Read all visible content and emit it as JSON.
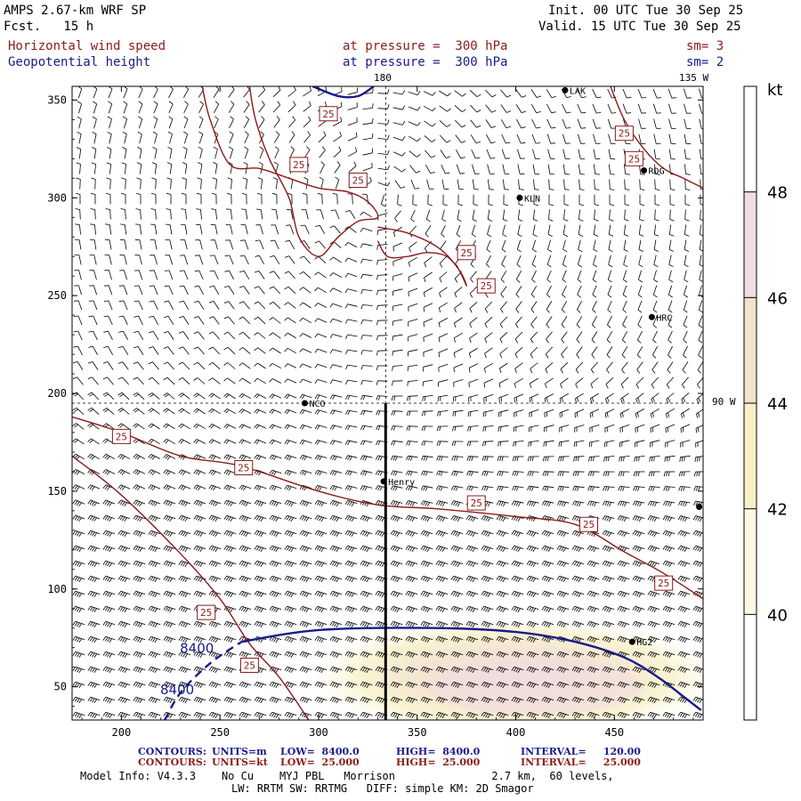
{
  "header": {
    "model": "AMPS 2.67-km WRF SP",
    "forecast": "Fcst.   15 h",
    "init": "Init. 00 UTC Tue 30 Sep 25",
    "valid": "Valid. 15 UTC Tue 30 Sep 25",
    "field1": "Horizontal wind speed",
    "field2": "Geopotential height",
    "pressure1": "at pressure =  300 hPa",
    "pressure2": "at pressure =  300 hPa",
    "smooth1": "sm= 3",
    "smooth2": "sm= 2"
  },
  "map_labels": {
    "lon_180": "180",
    "lon_135w": "135 W",
    "lon_90w": "90 W"
  },
  "stations": [
    {
      "name": "KLN",
      "x": 402,
      "y": 300
    },
    {
      "name": "RDG",
      "x": 465,
      "y": 314
    },
    {
      "name": "HRC",
      "x": 469,
      "y": 239
    },
    {
      "name": "NCO",
      "x": 293,
      "y": 195
    },
    {
      "name": "Henry",
      "x": 333,
      "y": 155
    },
    {
      "name": "HG2",
      "x": 459,
      "y": 73
    },
    {
      "name": "LAK",
      "x": 425,
      "y": 355
    },
    {
      "name": "",
      "x": 493,
      "y": 142
    }
  ],
  "footer": {
    "line1_label": "CONTOURS:",
    "line1_units": "UNITS=m",
    "line1_low": "LOW=  8400.0",
    "line1_high": "HIGH=  8400.0",
    "line1_interval": "INTERVAL=     120.00",
    "line2_label": "CONTOURS:",
    "line2_units": "UNITS=kt",
    "line2_low": "LOW=  25.000",
    "line2_high": "HIGH=  25.000",
    "line2_interval": "INTERVAL=     25.000",
    "model_info": "Model Info: V4.3.3    No Cu    MYJ PBL   Morrison               2.7 km,  60 levels,",
    "physics": "LW: RRTM SW: RRTMG   DIFF: simple KM: 2D Smagor"
  },
  "chart_data": {
    "type": "contour-map",
    "title": "Horizontal wind speed / Geopotential height at 300 hPa",
    "xlim": [
      175,
      495
    ],
    "ylim": [
      33,
      357
    ],
    "x_ticks": [
      200,
      250,
      300,
      350,
      400,
      450
    ],
    "y_ticks": [
      50,
      100,
      150,
      200,
      250,
      300,
      350
    ],
    "colorbar": {
      "unit": "kt",
      "ticks": [
        40,
        42,
        44,
        46,
        48
      ],
      "colors": [
        "#ffffff",
        "#fcf9e4",
        "#f8f0c4",
        "#f3e2ce",
        "#f0dde0",
        "#ffffff"
      ]
    },
    "height_contour": {
      "value": 8400,
      "label": "8400",
      "units": "m",
      "color": "#1a1a8c",
      "path": [
        [
          261,
          73
        ],
        [
          300,
          79
        ],
        [
          360,
          80
        ],
        [
          400,
          78
        ],
        [
          430,
          73
        ],
        [
          455,
          65
        ],
        [
          472,
          55
        ],
        [
          485,
          45
        ],
        [
          494,
          38
        ]
      ],
      "path2": [
        [
          222,
          33
        ],
        [
          230,
          47
        ],
        [
          245,
          62
        ],
        [
          261,
          73
        ]
      ],
      "path3": [
        [
          297,
          357
        ],
        [
          310,
          352
        ],
        [
          320,
          352
        ],
        [
          328,
          357
        ]
      ]
    },
    "speed_contours": {
      "value": 25,
      "label": "25",
      "units": "kt",
      "color": "#8b1a1a",
      "lines": [
        [
          [
            175,
            188
          ],
          [
            200,
            180
          ],
          [
            230,
            168
          ],
          [
            260,
            163
          ],
          [
            300,
            150
          ],
          [
            330,
            143
          ],
          [
            360,
            141
          ],
          [
            400,
            137
          ],
          [
            430,
            133
          ],
          [
            455,
            119
          ],
          [
            475,
            108
          ],
          [
            495,
            95
          ]
        ],
        [
          [
            175,
            168
          ],
          [
            200,
            148
          ],
          [
            230,
            118
          ],
          [
            250,
            95
          ],
          [
            265,
            72
          ],
          [
            280,
            55
          ],
          [
            295,
            33
          ]
        ],
        [
          [
            241,
            357
          ],
          [
            245,
            340
          ],
          [
            255,
            317
          ],
          [
            270,
            315
          ],
          [
            285,
            310
          ],
          [
            300,
            305
          ],
          [
            315,
            303
          ],
          [
            325,
            298
          ],
          [
            330,
            290
          ],
          [
            320,
            288
          ],
          [
            310,
            280
          ],
          [
            300,
            270
          ],
          [
            290,
            280
          ],
          [
            285,
            300
          ],
          [
            275,
            320
          ],
          [
            268,
            340
          ],
          [
            265,
            357
          ]
        ],
        [
          [
            330,
            285
          ],
          [
            345,
            282
          ],
          [
            360,
            275
          ],
          [
            370,
            265
          ],
          [
            375,
            255
          ],
          [
            372,
            262
          ],
          [
            365,
            270
          ],
          [
            355,
            272
          ],
          [
            345,
            270
          ],
          [
            335,
            270
          ],
          [
            330,
            278
          ]
        ],
        [
          [
            448,
            357
          ],
          [
            455,
            340
          ],
          [
            465,
            325
          ],
          [
            475,
            315
          ],
          [
            485,
            310
          ],
          [
            495,
            305
          ]
        ]
      ],
      "label_positions": [
        [
          200,
          178
        ],
        [
          262,
          162
        ],
        [
          380,
          144
        ],
        [
          437,
          133
        ],
        [
          475,
          103
        ],
        [
          243,
          88
        ],
        [
          265,
          61
        ],
        [
          305,
          343
        ],
        [
          290,
          317
        ],
        [
          320,
          309
        ],
        [
          375,
          272
        ],
        [
          385,
          255
        ],
        [
          455,
          333
        ],
        [
          460,
          320
        ]
      ]
    },
    "speed_fill": {
      "color_core": "#f0dde0",
      "color_mid": "#f3e2ce",
      "color_outer": "#f8f0c4",
      "center": [
        400,
        55
      ]
    },
    "reference_lines": {
      "meridian_x": 334,
      "parallel_y": 195,
      "cross_section": {
        "x": 334,
        "y_from": 33,
        "y_to": 195
      }
    }
  }
}
